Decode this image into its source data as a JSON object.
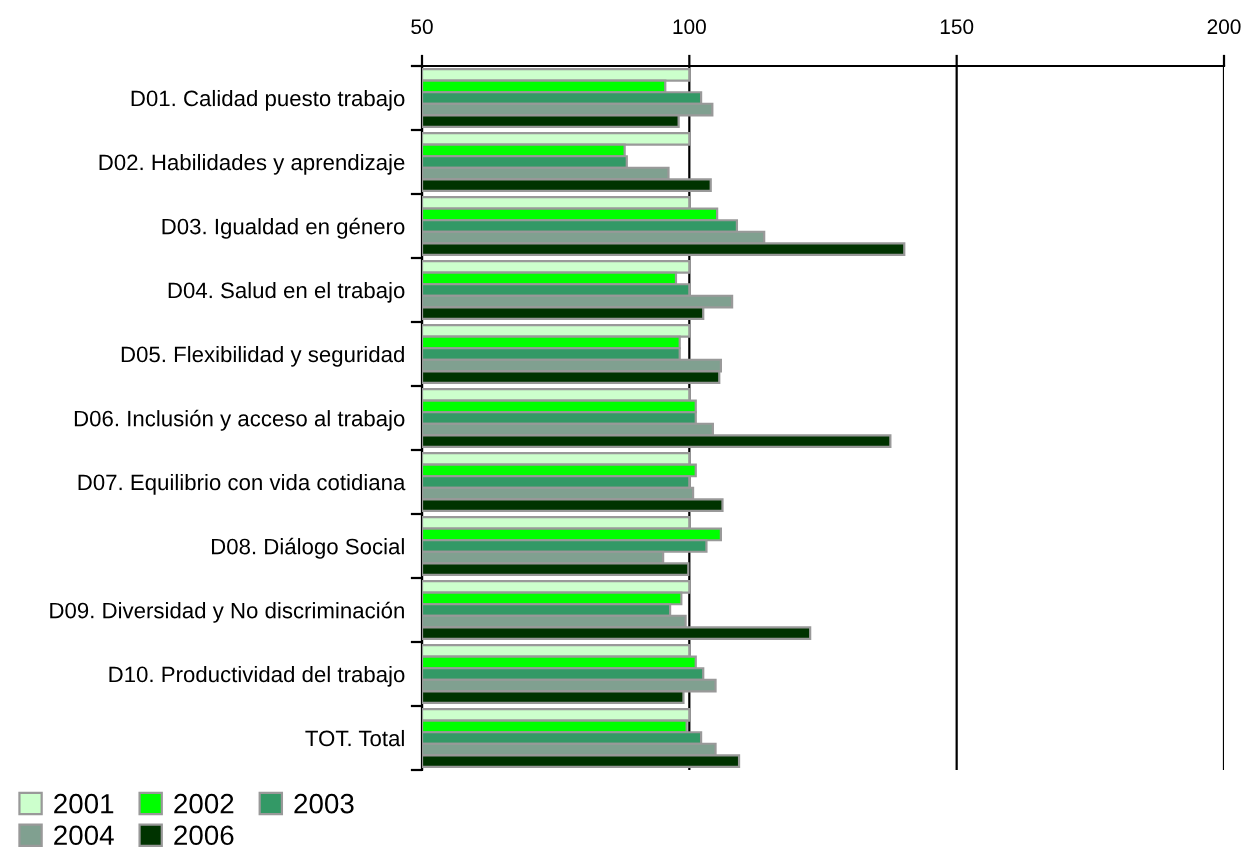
{
  "chart_data": {
    "type": "bar",
    "orientation": "horizontal",
    "categories": [
      "D01. Calidad puesto trabajo",
      "D02. Habilidades y aprendizaje",
      "D03. Igualdad en género",
      "D04. Salud en el trabajo",
      "D05. Flexibilidad y seguridad",
      "D06. Inclusión y acceso al trabajo",
      "D07. Equilibrio con vida cotidiana",
      "D08. Diálogo Social",
      "D09. Diversidad y No discriminación",
      "D10. Productividad del trabajo",
      "TOT. Total"
    ],
    "series": [
      {
        "name": "2001",
        "color": "#ccffcc",
        "values": [
          100,
          100,
          100,
          100,
          100,
          100,
          100,
          100,
          100,
          100,
          100
        ]
      },
      {
        "name": "2002",
        "color": "#00ff00",
        "values": [
          95.5,
          87.9,
          105.2,
          97.5,
          98.2,
          101.2,
          101.2,
          105.9,
          98.5,
          101.2,
          99.5
        ]
      },
      {
        "name": "2003",
        "color": "#339966",
        "values": [
          102.2,
          88.3,
          108.9,
          100,
          98.2,
          101.2,
          100,
          103.2,
          96.4,
          102.6,
          102.2
        ]
      },
      {
        "name": "2004",
        "color": "#80a090",
        "values": [
          104.3,
          96.1,
          114.0,
          108.0,
          105.9,
          104.4,
          100.7,
          95.1,
          99.3,
          104.9,
          104.9
        ]
      },
      {
        "name": "2006",
        "color": "#003300",
        "values": [
          98.0,
          104.0,
          140.2,
          102.6,
          105.6,
          137.6,
          106.2,
          99.8,
          122.6,
          98.9,
          109.3
        ]
      }
    ],
    "xlim": [
      50,
      200
    ],
    "xticks": [
      50,
      100,
      150,
      200
    ],
    "grid": "x",
    "legend": "bottom left"
  }
}
